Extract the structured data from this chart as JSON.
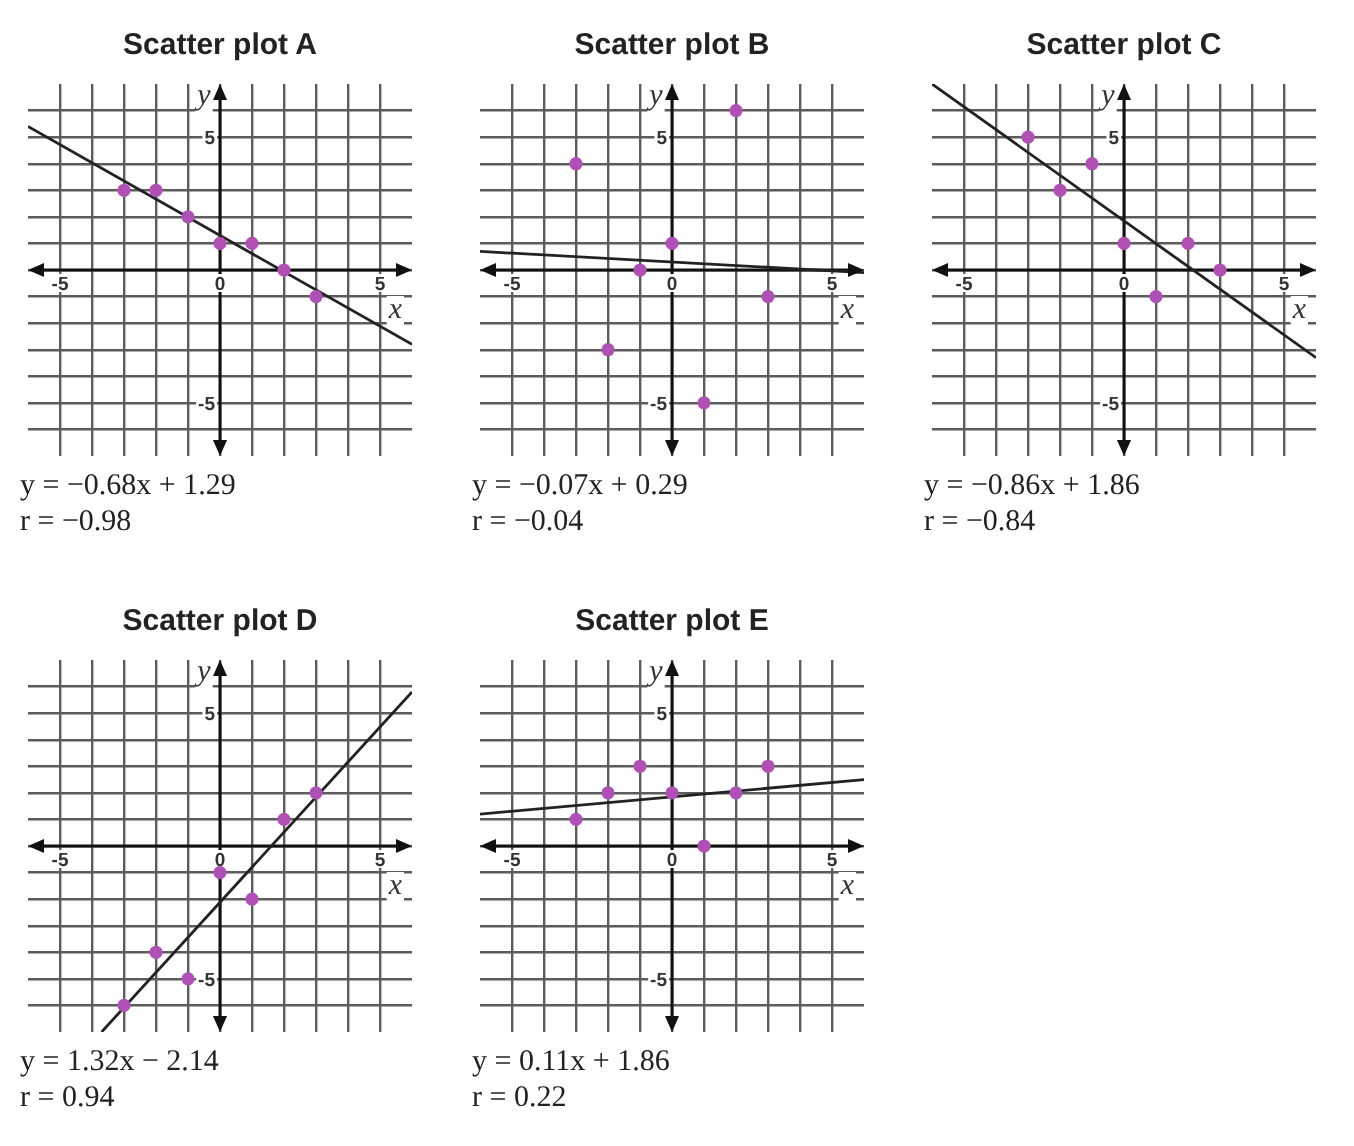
{
  "chart_data": [
    {
      "type": "scatter",
      "title": "Scatter plot A",
      "xlabel": "x",
      "ylabel": "y",
      "grid": true,
      "xlim": [
        -6,
        6
      ],
      "ylim": [
        -7,
        7
      ],
      "xticks": [
        -5,
        {
          "value": -4,
          "label": null
        },
        {
          "value": -3,
          "label": null
        },
        {
          "value": -2,
          "label": null
        },
        {
          "value": -1,
          "label": null
        },
        0,
        {
          "value": 1,
          "label": null
        },
        {
          "value": 2,
          "label": null
        },
        {
          "value": 3,
          "label": null
        },
        {
          "value": 4,
          "label": null
        },
        5
      ],
      "yticks": [
        {
          "value": -6,
          "label": null
        },
        {
          "value": -5,
          "label": "-5"
        },
        {
          "value": -4,
          "label": null
        },
        {
          "value": -3,
          "label": null
        },
        {
          "value": -2,
          "label": null
        },
        {
          "value": -1,
          "label": null
        },
        {
          "value": 0,
          "label": null
        },
        {
          "value": 1,
          "label": null
        },
        {
          "value": 2,
          "label": null
        },
        {
          "value": 3,
          "label": null
        },
        {
          "value": 4,
          "label": null
        },
        {
          "value": 5,
          "label": "5"
        },
        {
          "value": 6,
          "label": null
        }
      ],
      "series": [
        {
          "type": "scatter",
          "marker": "circle",
          "color": "#b04fb6",
          "x": [
            -3,
            -2,
            -1,
            0,
            1,
            2,
            3
          ],
          "values": [
            3,
            3,
            2,
            1,
            1,
            0,
            -1
          ]
        },
        {
          "type": "line",
          "color": "#222222",
          "x": [
            -6,
            6
          ],
          "values": [
            5.4,
            -2.8
          ]
        }
      ],
      "annotations": [
        "y = −0.68x + 1.29",
        "r = −0.98"
      ]
    },
    {
      "type": "scatter",
      "title": "Scatter plot B",
      "xlabel": "x",
      "ylabel": "y",
      "grid": true,
      "xlim": [
        -6,
        6
      ],
      "ylim": [
        -7,
        7
      ],
      "xticks": [
        -5,
        {
          "value": -4,
          "label": null
        },
        {
          "value": -3,
          "label": null
        },
        {
          "value": -2,
          "label": null
        },
        {
          "value": -1,
          "label": null
        },
        0,
        {
          "value": 1,
          "label": null
        },
        {
          "value": 2,
          "label": null
        },
        {
          "value": 3,
          "label": null
        },
        {
          "value": 4,
          "label": null
        },
        5
      ],
      "yticks": [
        {
          "value": -6,
          "label": null
        },
        {
          "value": -5,
          "label": "-5"
        },
        {
          "value": -4,
          "label": null
        },
        {
          "value": -3,
          "label": null
        },
        {
          "value": -2,
          "label": null
        },
        {
          "value": -1,
          "label": null
        },
        {
          "value": 0,
          "label": null
        },
        {
          "value": 1,
          "label": null
        },
        {
          "value": 2,
          "label": null
        },
        {
          "value": 3,
          "label": null
        },
        {
          "value": 4,
          "label": null
        },
        {
          "value": 5,
          "label": "5"
        },
        {
          "value": 6,
          "label": null
        }
      ],
      "series": [
        {
          "type": "scatter",
          "marker": "circle",
          "color": "#b04fb6",
          "x": [
            -3,
            -2,
            -1,
            0,
            1,
            2,
            3
          ],
          "values": [
            4,
            -3,
            0,
            1,
            -5,
            6,
            -1
          ]
        },
        {
          "type": "line",
          "color": "#222222",
          "x": [
            -6,
            6
          ],
          "values": [
            0.7,
            -0.1
          ]
        }
      ],
      "annotations": [
        "y = −0.07x + 0.29",
        "r = −0.04"
      ]
    },
    {
      "type": "scatter",
      "title": "Scatter plot C",
      "xlabel": "x",
      "ylabel": "y",
      "grid": true,
      "xlim": [
        -6,
        6
      ],
      "ylim": [
        -7,
        7
      ],
      "xticks": [
        -5,
        {
          "value": -4,
          "label": null
        },
        {
          "value": -3,
          "label": null
        },
        {
          "value": -2,
          "label": null
        },
        {
          "value": -1,
          "label": null
        },
        0,
        {
          "value": 1,
          "label": null
        },
        {
          "value": 2,
          "label": null
        },
        {
          "value": 3,
          "label": null
        },
        {
          "value": 4,
          "label": null
        },
        5
      ],
      "yticks": [
        {
          "value": -6,
          "label": null
        },
        {
          "value": -5,
          "label": "-5"
        },
        {
          "value": -4,
          "label": null
        },
        {
          "value": -3,
          "label": null
        },
        {
          "value": -2,
          "label": null
        },
        {
          "value": -1,
          "label": null
        },
        {
          "value": 0,
          "label": null
        },
        {
          "value": 1,
          "label": null
        },
        {
          "value": 2,
          "label": null
        },
        {
          "value": 3,
          "label": null
        },
        {
          "value": 4,
          "label": null
        },
        {
          "value": 5,
          "label": "5"
        },
        {
          "value": 6,
          "label": null
        }
      ],
      "series": [
        {
          "type": "scatter",
          "marker": "circle",
          "color": "#b04fb6",
          "x": [
            -3,
            -2,
            -1,
            0,
            1,
            2,
            3
          ],
          "values": [
            5,
            3,
            4,
            1,
            -1,
            1,
            0
          ]
        },
        {
          "type": "line",
          "color": "#222222",
          "x": [
            -6,
            6
          ],
          "values": [
            7,
            -3.3
          ]
        }
      ],
      "annotations": [
        "y = −0.86x + 1.86",
        "r = −0.84"
      ]
    },
    {
      "type": "scatter",
      "title": "Scatter plot D",
      "xlabel": "x",
      "ylabel": "y",
      "grid": true,
      "xlim": [
        -6,
        6
      ],
      "ylim": [
        -7,
        7
      ],
      "xticks": [
        -5,
        {
          "value": -4,
          "label": null
        },
        {
          "value": -3,
          "label": null
        },
        {
          "value": -2,
          "label": null
        },
        {
          "value": -1,
          "label": null
        },
        0,
        {
          "value": 1,
          "label": null
        },
        {
          "value": 2,
          "label": null
        },
        {
          "value": 3,
          "label": null
        },
        {
          "value": 4,
          "label": null
        },
        5
      ],
      "yticks": [
        {
          "value": -6,
          "label": null
        },
        {
          "value": -5,
          "label": "-5"
        },
        {
          "value": -4,
          "label": null
        },
        {
          "value": -3,
          "label": null
        },
        {
          "value": -2,
          "label": null
        },
        {
          "value": -1,
          "label": null
        },
        {
          "value": 0,
          "label": null
        },
        {
          "value": 1,
          "label": null
        },
        {
          "value": 2,
          "label": null
        },
        {
          "value": 3,
          "label": null
        },
        {
          "value": 4,
          "label": null
        },
        {
          "value": 5,
          "label": "5"
        },
        {
          "value": 6,
          "label": null
        }
      ],
      "series": [
        {
          "type": "scatter",
          "marker": "circle",
          "color": "#b04fb6",
          "x": [
            -3,
            -2,
            -1,
            0,
            1,
            2,
            3
          ],
          "values": [
            -6,
            -4,
            -5,
            -1,
            -2,
            1,
            2
          ]
        },
        {
          "type": "line",
          "color": "#222222",
          "x": [
            -3.7,
            6
          ],
          "values": [
            -7,
            5.8
          ]
        }
      ],
      "annotations": [
        "y = 1.32x − 2.14",
        "r = 0.94"
      ]
    },
    {
      "type": "scatter",
      "title": "Scatter plot E",
      "xlabel": "x",
      "ylabel": "y",
      "grid": true,
      "xlim": [
        -6,
        6
      ],
      "ylim": [
        -7,
        7
      ],
      "xticks": [
        -5,
        {
          "value": -4,
          "label": null
        },
        {
          "value": -3,
          "label": null
        },
        {
          "value": -2,
          "label": null
        },
        {
          "value": -1,
          "label": null
        },
        0,
        {
          "value": 1,
          "label": null
        },
        {
          "value": 2,
          "label": null
        },
        {
          "value": 3,
          "label": null
        },
        {
          "value": 4,
          "label": null
        },
        5
      ],
      "yticks": [
        {
          "value": -6,
          "label": null
        },
        {
          "value": -5,
          "label": "-5"
        },
        {
          "value": -4,
          "label": null
        },
        {
          "value": -3,
          "label": null
        },
        {
          "value": -2,
          "label": null
        },
        {
          "value": -1,
          "label": null
        },
        {
          "value": 0,
          "label": null
        },
        {
          "value": 1,
          "label": null
        },
        {
          "value": 2,
          "label": null
        },
        {
          "value": 3,
          "label": null
        },
        {
          "value": 4,
          "label": null
        },
        {
          "value": 5,
          "label": "5"
        },
        {
          "value": 6,
          "label": null
        }
      ],
      "series": [
        {
          "type": "scatter",
          "marker": "circle",
          "color": "#b04fb6",
          "x": [
            -3,
            -2,
            -1,
            0,
            1,
            2,
            3
          ],
          "values": [
            1,
            2,
            3,
            2,
            0,
            2,
            3
          ]
        },
        {
          "type": "line",
          "color": "#222222",
          "x": [
            -6,
            6
          ],
          "values": [
            1.2,
            2.5
          ]
        }
      ],
      "annotations": [
        "y = 0.11x + 1.86",
        "r = 0.22"
      ]
    }
  ]
}
